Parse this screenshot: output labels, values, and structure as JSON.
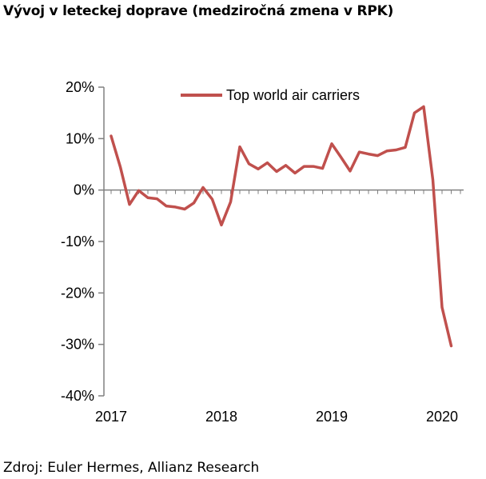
{
  "title": "Vývoj v leteckej doprave (medziročná zmena v RPK)",
  "source": "Zdroj: Euler Hermes, Allianz Research",
  "colors": {
    "series": "#c0504d",
    "axis": "#808080",
    "text": "#000000"
  },
  "chart_data": {
    "type": "line",
    "title": "Vývoj v leteckej doprave (medziročná zmena v RPK)",
    "xlabel": "",
    "ylabel": "",
    "ylim": [
      -40,
      20
    ],
    "yticks": [
      20,
      10,
      0,
      -10,
      -20,
      -30,
      -40
    ],
    "ytick_labels": [
      "20%",
      "10%",
      "0%",
      "-10%",
      "-20%",
      "-30%",
      "-40%"
    ],
    "xtick_labels": [
      "2017",
      "2018",
      "2019",
      "2020"
    ],
    "x_start": "2017-01",
    "x_end": "2020-02",
    "grid": false,
    "legend": "top",
    "series": [
      {
        "name": "Top world air carriers",
        "x": [
          "2017-01",
          "2017-02",
          "2017-03",
          "2017-04",
          "2017-05",
          "2017-06",
          "2017-07",
          "2017-08",
          "2017-09",
          "2017-10",
          "2017-11",
          "2017-12",
          "2018-01",
          "2018-02",
          "2018-03",
          "2018-04",
          "2018-05",
          "2018-06",
          "2018-07",
          "2018-08",
          "2018-09",
          "2018-10",
          "2018-11",
          "2018-12",
          "2019-01",
          "2019-02",
          "2019-03",
          "2019-04",
          "2019-05",
          "2019-06",
          "2019-07",
          "2019-08",
          "2019-09",
          "2019-10",
          "2019-11",
          "2019-12",
          "2020-01",
          "2020-02"
        ],
        "values": [
          10.5,
          4.5,
          -2.8,
          -0.1,
          -1.5,
          -1.7,
          -3.1,
          -3.3,
          -3.7,
          -2.5,
          0.5,
          -1.8,
          -6.8,
          -2.3,
          8.4,
          5.1,
          4.1,
          5.3,
          3.6,
          4.8,
          3.3,
          4.6,
          4.6,
          4.2,
          9.0,
          6.4,
          3.7,
          7.4,
          7.0,
          6.7,
          7.6,
          7.8,
          8.3,
          15.0,
          16.2,
          2.0,
          -22.8,
          -30.3
        ]
      }
    ]
  }
}
